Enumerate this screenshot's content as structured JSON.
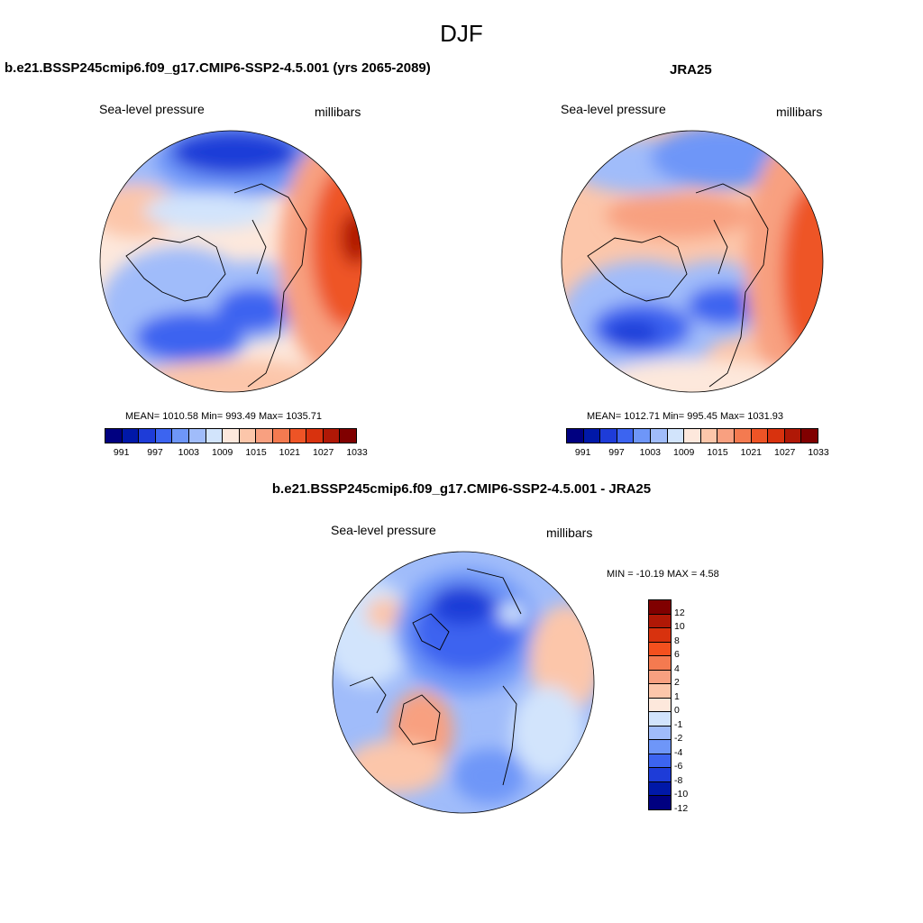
{
  "main_title": "DJF",
  "panels": [
    {
      "title": "b.e21.BSSP245cmip6.f09_g17.CMIP6-SSP2-4.5.001 (yrs 2065-2089)",
      "left_label": "Sea-level pressure",
      "right_label": "millibars",
      "stats": "MEAN= 1010.58   Min= 993.49   Max= 1035.71",
      "colorbar_ticks": [
        "991",
        "997",
        "1003",
        "1009",
        "1015",
        "1021",
        "1027",
        "1033"
      ]
    },
    {
      "title": "JRA25",
      "left_label": "Sea-level pressure",
      "right_label": "millibars",
      "stats": "MEAN= 1012.71   Min= 995.45   Max= 1031.93",
      "colorbar_ticks": [
        "991",
        "997",
        "1003",
        "1009",
        "1015",
        "1021",
        "1027",
        "1033"
      ]
    }
  ],
  "diff_panel": {
    "title": "b.e21.BSSP245cmip6.f09_g17.CMIP6-SSP2-4.5.001 - JRA25",
    "left_label": "Sea-level pressure",
    "right_label": "millibars",
    "stats": "MIN = -10.19 MAX =   4.58",
    "colorbar_ticks": [
      "12",
      "10",
      "8",
      "6",
      "4",
      "2",
      "1",
      "0",
      "-1",
      "-2",
      "-4",
      "-6",
      "-8",
      "-10",
      "-12"
    ]
  },
  "colors": {
    "abs_scale": [
      "#000080",
      "#0018a8",
      "#1e3cd8",
      "#3c64f0",
      "#6e96f8",
      "#a0bcfa",
      "#d2e4fc",
      "#fde8dc",
      "#fcc6aa",
      "#f8a080",
      "#f47a50",
      "#ee5426",
      "#d8320e",
      "#b01806",
      "#800000"
    ],
    "diff_scale": [
      "#800000",
      "#b01806",
      "#d8320e",
      "#f4501e",
      "#f47a50",
      "#f8a080",
      "#fcc6aa",
      "#fde8dc",
      "#d2e4fc",
      "#a0bcfa",
      "#6e96f8",
      "#3c64f0",
      "#1e3cd8",
      "#0018a8",
      "#000080"
    ]
  }
}
